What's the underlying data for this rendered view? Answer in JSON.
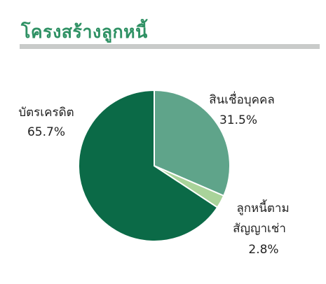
{
  "title": "โครงสร้างลูกหนี้",
  "colors": {
    "title": "#2f9164",
    "rule": "#c9cbca"
  },
  "chart_data": {
    "type": "pie",
    "title": "โครงสร้างลูกหนี้",
    "slices": [
      {
        "label": "สินเชื่อบุคคล",
        "value": 31.5,
        "value_label": "31.5%",
        "color": "#5fa48a"
      },
      {
        "label": "ลูกหนี้ตาม สัญญาเช่า",
        "label_lines": [
          "ลูกหนี้ตาม",
          "สัญญาเช่า"
        ],
        "value": 2.8,
        "value_label": "2.8%",
        "color": "#a9d39a"
      },
      {
        "label": "บัตรเครดิต",
        "value": 65.7,
        "value_label": "65.7%",
        "color": "#0b6a47"
      }
    ],
    "start_angle": "12 o'clock",
    "direction": "clockwise",
    "legend": "none (direct labels)"
  }
}
